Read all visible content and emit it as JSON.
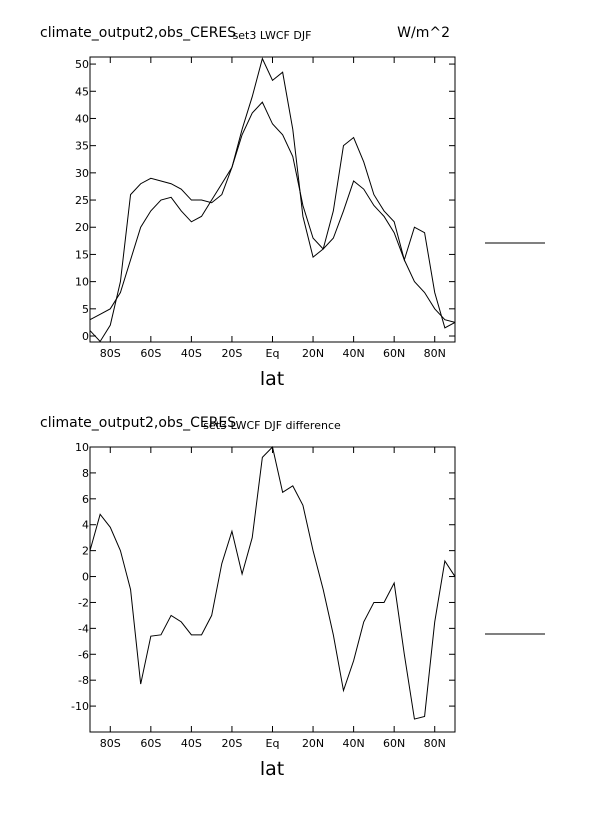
{
  "chart_data": [
    {
      "type": "line",
      "title_left": "climate_output2,obs_CERES",
      "title_center": "set3 LWCF DJF",
      "title_right": "W/m^2",
      "xlabel": "lat",
      "x": [
        -90,
        -85,
        -80,
        -75,
        -70,
        -65,
        -60,
        -55,
        -50,
        -45,
        -40,
        -35,
        -30,
        -25,
        -20,
        -15,
        -10,
        -5,
        0,
        5,
        10,
        15,
        20,
        25,
        30,
        35,
        40,
        45,
        50,
        55,
        60,
        65,
        70,
        75,
        80,
        85,
        90
      ],
      "series": [
        {
          "color": "#000000",
          "values": [
            3,
            4,
            5,
            8,
            14,
            20,
            23,
            25,
            25.5,
            23,
            21,
            22,
            25,
            28,
            31,
            37,
            41,
            43,
            39,
            37,
            33,
            24,
            18,
            16,
            18,
            23,
            28.5,
            27,
            24,
            22,
            19,
            14,
            10,
            8,
            5,
            3,
            2.5
          ]
        },
        {
          "color": "#000000",
          "values": [
            1,
            -1,
            2,
            10,
            26,
            28,
            29,
            28.5,
            28,
            27,
            25,
            25,
            24.5,
            26,
            31,
            38,
            44,
            51,
            47,
            48.5,
            38,
            22,
            14.5,
            16,
            23,
            35,
            36.5,
            32,
            26,
            23,
            21,
            14,
            20,
            19,
            8,
            1.5,
            2.5
          ]
        }
      ],
      "xlim": [
        -90,
        90
      ],
      "xticks": [
        {
          "value": -80,
          "label": "80S"
        },
        {
          "value": -60,
          "label": "60S"
        },
        {
          "value": -40,
          "label": "40S"
        },
        {
          "value": -20,
          "label": "20S"
        },
        {
          "value": 0,
          "label": "Eq"
        },
        {
          "value": 20,
          "label": "20N"
        },
        {
          "value": 40,
          "label": "40N"
        },
        {
          "value": 60,
          "label": "60N"
        },
        {
          "value": 80,
          "label": "80N"
        }
      ],
      "ylim": [
        -1.1,
        51.3
      ],
      "yticks": [
        0,
        5,
        10,
        15,
        20,
        25,
        30,
        35,
        40,
        45,
        50
      ]
    },
    {
      "type": "line",
      "title_left": "climate_output2,obs_CERES",
      "title_center": "set3 LWCF DJF difference",
      "xlabel": "lat",
      "x": [
        -90,
        -85,
        -80,
        -75,
        -70,
        -65,
        -60,
        -55,
        -50,
        -45,
        -40,
        -35,
        -30,
        -25,
        -20,
        -15,
        -10,
        -5,
        0,
        5,
        10,
        15,
        20,
        25,
        30,
        35,
        40,
        45,
        50,
        55,
        60,
        65,
        70,
        75,
        80,
        85,
        90
      ],
      "series": [
        {
          "color": "#000000",
          "values": [
            2,
            4.8,
            3.8,
            2,
            -1,
            -8.3,
            -4.6,
            -4.5,
            -3,
            -3.5,
            -4.5,
            -4.5,
            -3,
            1,
            3.5,
            0.2,
            3,
            9.2,
            10,
            6.5,
            7,
            5.5,
            2,
            -1,
            -4.5,
            -8.8,
            -6.5,
            -3.5,
            -2,
            -2,
            -0.5,
            -6,
            -11,
            -10.8,
            -3.5,
            1.2,
            0
          ]
        }
      ],
      "xlim": [
        -90,
        90
      ],
      "xticks": [
        {
          "value": -80,
          "label": "80S"
        },
        {
          "value": -60,
          "label": "60S"
        },
        {
          "value": -40,
          "label": "40S"
        },
        {
          "value": -20,
          "label": "20S"
        },
        {
          "value": 0,
          "label": "Eq"
        },
        {
          "value": 20,
          "label": "20N"
        },
        {
          "value": 40,
          "label": "40N"
        },
        {
          "value": 60,
          "label": "60N"
        },
        {
          "value": 80,
          "label": "80N"
        }
      ],
      "ylim": [
        -12,
        10
      ],
      "yticks": [
        -10,
        -8,
        -6,
        -4,
        -2,
        0,
        2,
        4,
        6,
        8,
        10
      ]
    }
  ]
}
